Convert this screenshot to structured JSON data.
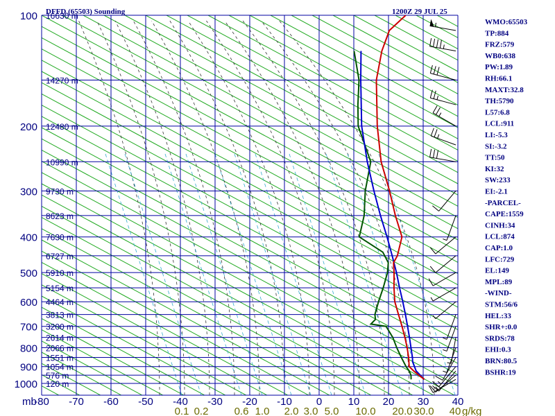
{
  "header": {
    "station": "DFFD (65503) Sounding",
    "time": "1200Z 29 JUL 25"
  },
  "colors": {
    "grid": "#0000a0",
    "dry_adiabat": "#22aa22",
    "moist_adiabat": "#333333",
    "mixing_ratio": "#33aacc",
    "temperature": "#cc0000",
    "dewpoint": "#005500",
    "parcel": "#0000cc",
    "text": "#000080",
    "mixing_ratio_label": "#6b6b00"
  },
  "chart_data": {
    "type": "skew-t log-p",
    "x_axis_unit_label": "mb",
    "mixing_ratio_unit_label": "g/kg",
    "pressure_ticks": [
      100,
      200,
      300,
      400,
      500,
      600,
      700,
      800,
      900,
      1000
    ],
    "pressure_labels": [
      "100",
      "200",
      "300",
      "400",
      "500",
      "600",
      "700",
      "800",
      "900",
      "1000"
    ],
    "temperature_ticks": [
      -80,
      -70,
      -60,
      -50,
      -40,
      -30,
      -20,
      -10,
      0,
      10,
      20,
      30,
      40
    ],
    "temperature_labels": [
      "-80",
      "-70",
      "-60",
      "-50",
      "-40",
      "-30",
      "-20",
      "-10",
      "0",
      "10",
      "20",
      "30",
      "40"
    ],
    "height_labels": [
      {
        "p": 100,
        "label": "16630 m"
      },
      {
        "p": 150,
        "label": "14270 m"
      },
      {
        "p": 200,
        "label": "12480 m"
      },
      {
        "p": 250,
        "label": "10990 m"
      },
      {
        "p": 300,
        "label": "9730 m"
      },
      {
        "p": 350,
        "label": "8623 m"
      },
      {
        "p": 400,
        "label": "7630 m"
      },
      {
        "p": 450,
        "label": "6727 m"
      },
      {
        "p": 500,
        "label": "5910 m"
      },
      {
        "p": 550,
        "label": "5154 m"
      },
      {
        "p": 600,
        "label": "4464 m"
      },
      {
        "p": 650,
        "label": "3813 m"
      },
      {
        "p": 700,
        "label": "3200 m"
      },
      {
        "p": 750,
        "label": "2614 m"
      },
      {
        "p": 800,
        "label": "2066 m"
      },
      {
        "p": 850,
        "label": "1551 m"
      },
      {
        "p": 900,
        "label": "1054 m"
      },
      {
        "p": 950,
        "label": "576 m"
      },
      {
        "p": 1000,
        "label": "120 m"
      }
    ],
    "mixing_ratio_lines": [
      0.1,
      0.2,
      0.6,
      1.0,
      2.0,
      3.0,
      5.0,
      10.0,
      20.0,
      30.0,
      40.0
    ],
    "mixing_ratio_labels": [
      "0.1",
      "0.2",
      "0.6",
      "1.0",
      "2.0",
      "3.0",
      "5.0",
      "10.0",
      "20.0",
      "30.0",
      "40"
    ],
    "temperature_profile": [
      {
        "p": 975,
        "t": 29.2
      },
      {
        "p": 950,
        "t": 26.5
      },
      {
        "p": 925,
        "t": 23.8
      },
      {
        "p": 900,
        "t": 21.3
      },
      {
        "p": 850,
        "t": 18.6
      },
      {
        "p": 800,
        "t": 15.5
      },
      {
        "p": 750,
        "t": 12.0
      },
      {
        "p": 700,
        "t": 8.1
      },
      {
        "p": 650,
        "t": 3.8
      },
      {
        "p": 600,
        "t": -0.8
      },
      {
        "p": 550,
        "t": -4.9
      },
      {
        "p": 500,
        "t": -9.1
      },
      {
        "p": 470,
        "t": -12.0
      },
      {
        "p": 450,
        "t": -12.8
      },
      {
        "p": 400,
        "t": -16.7
      },
      {
        "p": 350,
        "t": -24.5
      },
      {
        "p": 300,
        "t": -33.0
      },
      {
        "p": 250,
        "t": -43.5
      },
      {
        "p": 200,
        "t": -54.5
      },
      {
        "p": 150,
        "t": -67.5
      },
      {
        "p": 125,
        "t": -74.0
      },
      {
        "p": 110,
        "t": -77.5
      },
      {
        "p": 100,
        "t": -77.0
      }
    ],
    "dewpoint_profile": [
      {
        "p": 975,
        "t": 25.4
      },
      {
        "p": 950,
        "t": 24.2
      },
      {
        "p": 925,
        "t": 22.5
      },
      {
        "p": 900,
        "t": 20.4
      },
      {
        "p": 850,
        "t": 16.5
      },
      {
        "p": 800,
        "t": 12.5
      },
      {
        "p": 750,
        "t": 8.5
      },
      {
        "p": 700,
        "t": 3.5
      },
      {
        "p": 690,
        "t": -1.5
      },
      {
        "p": 670,
        "t": -1.5
      },
      {
        "p": 650,
        "t": -3.0
      },
      {
        "p": 600,
        "t": -5.5
      },
      {
        "p": 550,
        "t": -8.0
      },
      {
        "p": 500,
        "t": -11.0
      },
      {
        "p": 470,
        "t": -13.5
      },
      {
        "p": 440,
        "t": -18.0
      },
      {
        "p": 400,
        "t": -29.0
      },
      {
        "p": 350,
        "t": -33.5
      },
      {
        "p": 300,
        "t": -40.0
      },
      {
        "p": 250,
        "t": -46.5
      },
      {
        "p": 200,
        "t": -60.0
      },
      {
        "p": 175,
        "t": -66.0
      },
      {
        "p": 150,
        "t": -72.5
      },
      {
        "p": 125,
        "t": -82.0
      }
    ],
    "parcel_profile": [
      {
        "p": 975,
        "t": 29.2
      },
      {
        "p": 925,
        "t": 24.5
      },
      {
        "p": 874,
        "t": 21.0
      },
      {
        "p": 850,
        "t": 19.7
      },
      {
        "p": 800,
        "t": 16.6
      },
      {
        "p": 750,
        "t": 13.3
      },
      {
        "p": 700,
        "t": 9.7
      },
      {
        "p": 650,
        "t": 5.8
      },
      {
        "p": 600,
        "t": 1.5
      },
      {
        "p": 550,
        "t": -3.3
      },
      {
        "p": 500,
        "t": -8.4
      },
      {
        "p": 450,
        "t": -14.3
      },
      {
        "p": 400,
        "t": -21.0
      },
      {
        "p": 350,
        "t": -28.8
      },
      {
        "p": 300,
        "t": -37.5
      },
      {
        "p": 250,
        "t": -47.5
      },
      {
        "p": 200,
        "t": -59.0
      },
      {
        "p": 150,
        "t": -72.0
      },
      {
        "p": 125,
        "t": -80.0
      }
    ],
    "wind_barbs": [
      {
        "p": 110,
        "dir": 280,
        "spd": 55
      },
      {
        "p": 125,
        "dir": 280,
        "spd": 45
      },
      {
        "p": 150,
        "dir": 285,
        "spd": 30
      },
      {
        "p": 175,
        "dir": 285,
        "spd": 25
      },
      {
        "p": 200,
        "dir": 300,
        "spd": 25
      },
      {
        "p": 225,
        "dir": 290,
        "spd": 25
      },
      {
        "p": 250,
        "dir": 280,
        "spd": 30
      },
      {
        "p": 300,
        "dir": 220,
        "spd": 10
      },
      {
        "p": 350,
        "dir": 200,
        "spd": 5
      },
      {
        "p": 400,
        "dir": 230,
        "spd": 10
      },
      {
        "p": 450,
        "dir": 230,
        "spd": 10
      },
      {
        "p": 500,
        "dir": 240,
        "spd": 10
      },
      {
        "p": 550,
        "dir": 240,
        "spd": 5
      },
      {
        "p": 600,
        "dir": 230,
        "spd": 5
      },
      {
        "p": 650,
        "dir": 200,
        "spd": 5
      },
      {
        "p": 700,
        "dir": 200,
        "spd": 5
      },
      {
        "p": 750,
        "dir": 190,
        "spd": 5
      },
      {
        "p": 800,
        "dir": 200,
        "spd": 5
      },
      {
        "p": 850,
        "dir": 210,
        "spd": 10
      },
      {
        "p": 900,
        "dir": 220,
        "spd": 15
      },
      {
        "p": 925,
        "dir": 220,
        "spd": 15
      },
      {
        "p": 950,
        "dir": 230,
        "spd": 15
      },
      {
        "p": 975,
        "dir": 240,
        "spd": 10
      }
    ]
  },
  "indices": [
    "WMO:65503",
    "TP:884",
    "FRZ:579",
    "WB0:638",
    "PW:1.89",
    "RH:66.1",
    "MAXT:32.8",
    "TH:5790",
    "L57:6.8",
    "LCL:911",
    "LI:-5.3",
    "SI:-3.2",
    "TT:50",
    "KI:32",
    "SW:233",
    "EI:-2.1",
    "-PARCEL-",
    "CAPE:1559",
    "CINH:34",
    "LCL:874",
    "CAP:1.0",
    "LFC:729",
    "EL:149",
    "MPL:89",
    "-WIND-",
    "STM:56/6",
    "HEL:33",
    "SHR+:0.0",
    "SRDS:78",
    "EHI:0.3",
    "BRN:80.5",
    "BSHR:19"
  ]
}
